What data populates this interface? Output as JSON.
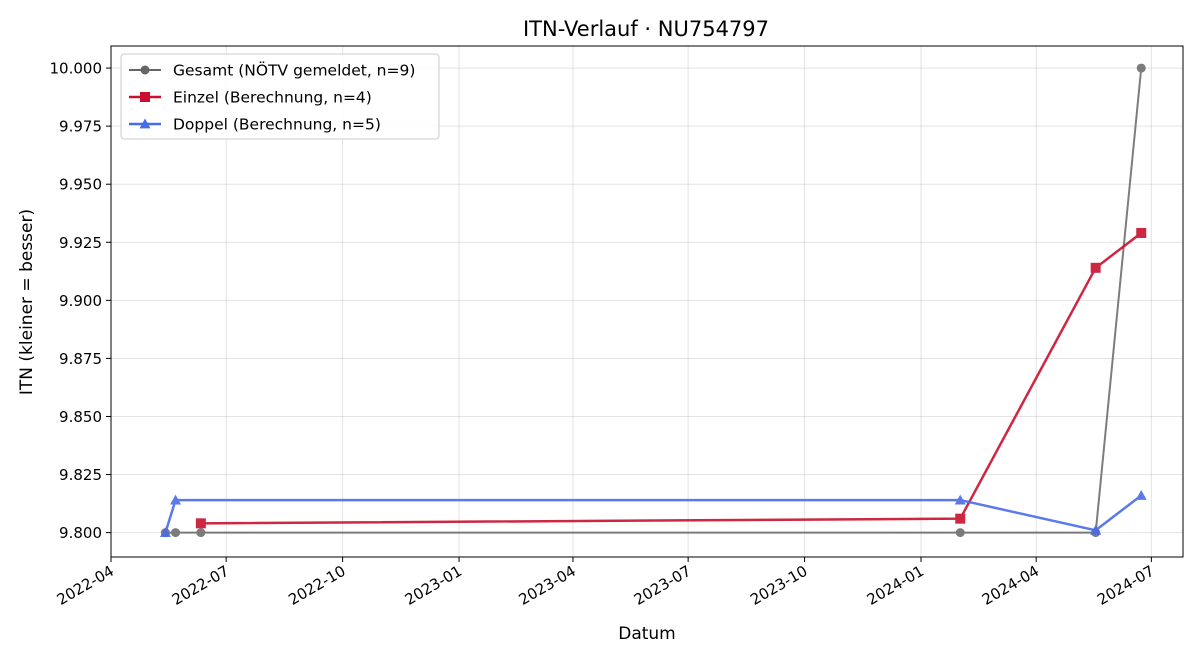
{
  "chart_data": {
    "type": "line",
    "title": "ITN-Verlauf · NU754797",
    "xlabel": "Datum",
    "ylabel": "ITN  (kleiner = besser)",
    "xlim": [
      "2022-04-01",
      "2024-07-26"
    ],
    "ylim": [
      9.7895,
      10.0095
    ],
    "x_ticks": [
      "2022-04-01",
      "2022-07-01",
      "2022-10-01",
      "2023-01-01",
      "2023-04-01",
      "2023-07-01",
      "2023-10-01",
      "2024-01-01",
      "2024-04-01",
      "2024-07-01"
    ],
    "x_tick_labels": [
      "2022-04",
      "2022-07",
      "2022-10",
      "2023-01",
      "2023-04",
      "2023-07",
      "2023-10",
      "2024-01",
      "2024-04",
      "2024-07"
    ],
    "y_ticks": [
      9.8,
      9.825,
      9.85,
      9.875,
      9.9,
      9.925,
      9.95,
      9.975,
      10.0
    ],
    "y_tick_labels": [
      "9.800",
      "9.825",
      "9.850",
      "9.875",
      "9.900",
      "9.925",
      "9.950",
      "9.975",
      "10.000"
    ],
    "grid": true,
    "legend_position": "top-left",
    "series": [
      {
        "name": "Gesamt (NÖTV gemeldet, n=9)",
        "color": "#666666",
        "marker": "circle",
        "points": [
          {
            "x": "2022-05-14",
            "y": 9.8
          },
          {
            "x": "2022-05-22",
            "y": 9.8
          },
          {
            "x": "2022-06-11",
            "y": 9.8
          },
          {
            "x": "2024-02-01",
            "y": 9.8
          },
          {
            "x": "2024-05-18",
            "y": 9.8
          },
          {
            "x": "2024-06-23",
            "y": 10.0
          }
        ]
      },
      {
        "name": "Einzel (Berechnung, n=4)",
        "color": "#c8102e",
        "marker": "square",
        "points": [
          {
            "x": "2022-06-11",
            "y": 9.804
          },
          {
            "x": "2024-02-01",
            "y": 9.806
          },
          {
            "x": "2024-05-18",
            "y": 9.914
          },
          {
            "x": "2024-06-23",
            "y": 9.929
          }
        ]
      },
      {
        "name": "Doppel (Berechnung, n=5)",
        "color": "#4a6be8",
        "marker": "triangle",
        "points": [
          {
            "x": "2022-05-14",
            "y": 9.8
          },
          {
            "x": "2022-05-22",
            "y": 9.814
          },
          {
            "x": "2024-02-01",
            "y": 9.814
          },
          {
            "x": "2024-05-18",
            "y": 9.801
          },
          {
            "x": "2024-06-23",
            "y": 9.816
          }
        ]
      }
    ]
  }
}
